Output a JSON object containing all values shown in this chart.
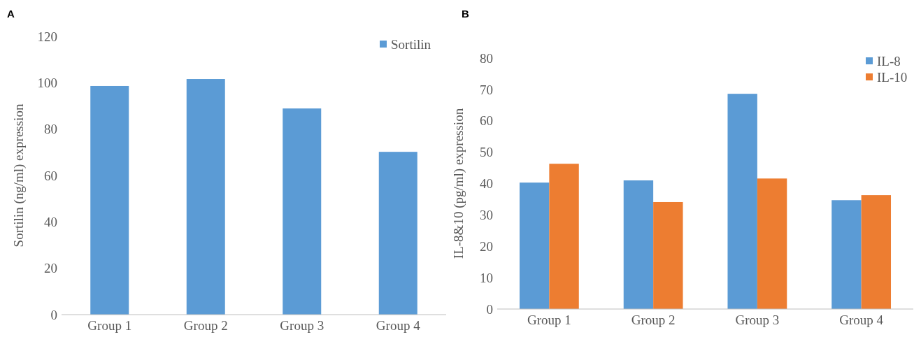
{
  "chart_data": [
    {
      "type": "bar",
      "title": "A",
      "ylabel": "Sortilin (ng/ml) expression",
      "categories": [
        "Group 1",
        "Group 2",
        "Group 3",
        "Group 4"
      ],
      "series": [
        {
          "name": "Sortilin",
          "color": "#5b9bd5",
          "values": [
            98.6,
            101.6,
            88.9,
            70.2
          ]
        }
      ],
      "ylim": [
        0,
        120
      ],
      "yticks": [
        0,
        20,
        40,
        60,
        80,
        100,
        120
      ],
      "legend": "top right"
    },
    {
      "type": "bar",
      "title": "B",
      "ylabel": "IL-8&10 (pg/ml) expression",
      "categories": [
        "Group 1",
        "Group 2",
        "Group 3",
        "Group 4"
      ],
      "series": [
        {
          "name": "IL-8",
          "color": "#5b9bd5",
          "values": [
            40.3,
            41.0,
            68.6,
            34.7
          ]
        },
        {
          "name": "IL-10",
          "color": "#ed7d31",
          "values": [
            46.3,
            34.1,
            41.6,
            36.3
          ]
        }
      ],
      "ylim": [
        0,
        80
      ],
      "yticks": [
        0,
        10,
        20,
        30,
        40,
        50,
        60,
        70,
        80
      ],
      "legend": "top right"
    }
  ]
}
